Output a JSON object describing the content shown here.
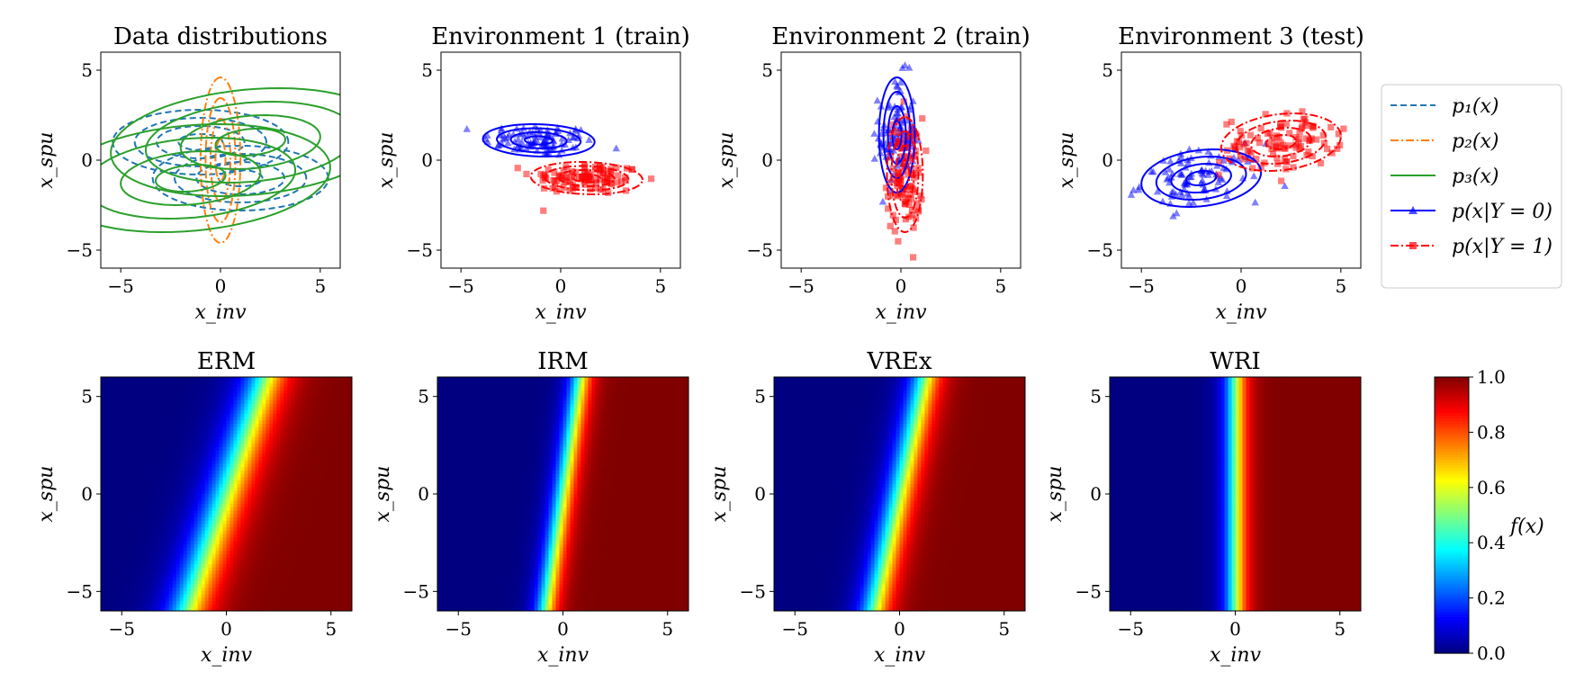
{
  "figure": {
    "colors": {
      "blue": "#1f77b4",
      "orange": "#ff7f0e",
      "green": "#2ca02c",
      "class0": "#0000ff",
      "class1": "#ff0000"
    },
    "legend": {
      "placement": "right of top row",
      "entries": [
        {
          "text": "p₁(x)",
          "style": "dashed",
          "color": "#1f77b4",
          "marker": "none"
        },
        {
          "text": "p₂(x)",
          "style": "dashdot",
          "color": "#ff7f0e",
          "marker": "none"
        },
        {
          "text": "p₃(x)",
          "style": "solid",
          "color": "#2ca02c",
          "marker": "none"
        },
        {
          "text": "p(x|Y = 0)",
          "style": "solid",
          "color": "#0000ff",
          "marker": "triangle"
        },
        {
          "text": "p(x|Y = 1)",
          "style": "dashdot",
          "color": "#ff0000",
          "marker": "square"
        }
      ]
    },
    "colorbar": {
      "label": "f(x)",
      "range": [
        0,
        1
      ],
      "ticks": [
        "0.0",
        "0.2",
        "0.4",
        "0.6",
        "0.8",
        "1.0"
      ],
      "colormap": "jet"
    }
  },
  "chart_data": [
    {
      "type": "contour",
      "title": "Data distributions",
      "xlabel": "x_inv",
      "ylabel": "x_spu",
      "xlim": [
        -6,
        6
      ],
      "ylim": [
        -6,
        6
      ],
      "xticks": [
        "−5",
        "0",
        "5"
      ],
      "yticks": [
        "−5",
        "0",
        "5"
      ],
      "series": [
        {
          "legend_index": 0,
          "color": "#1f77b4",
          "style": "dashed",
          "components": [
            {
              "mean": [
                -1,
                1
              ],
              "std": [
                2.2,
                0.9
              ],
              "rho": 0
            },
            {
              "mean": [
                1,
                -1
              ],
              "std": [
                2.2,
                0.9
              ],
              "rho": 0
            }
          ]
        },
        {
          "legend_index": 1,
          "color": "#ff7f0e",
          "style": "dashdot",
          "components": [
            {
              "mean": [
                0,
                0
              ],
              "std": [
                0.5,
                2.3
              ],
              "rho": 0
            }
          ]
        },
        {
          "legend_index": 2,
          "color": "#2ca02c",
          "style": "solid",
          "components": [
            {
              "mean": [
                1.5,
                1
              ],
              "std": [
                3.5,
                1.5
              ],
              "rho": 0.2
            },
            {
              "mean": [
                -1.5,
                -1
              ],
              "std": [
                3.5,
                1.5
              ],
              "rho": 0.2
            }
          ]
        }
      ]
    },
    {
      "type": "scatter",
      "title": "Environment 1 (train)",
      "xlabel": "x_inv",
      "ylabel": "x_spu",
      "xlim": [
        -6,
        6
      ],
      "ylim": [
        -6,
        6
      ],
      "xticks": [
        "−5",
        "0",
        "5"
      ],
      "yticks": [
        "−5",
        "0",
        "5"
      ],
      "classes": [
        {
          "legend_index": 3,
          "label": "Y=0",
          "marker": "triangle",
          "color": "#0000ff",
          "style": "solid",
          "mean": [
            -1.1,
            1.1
          ],
          "std": [
            1.4,
            0.45
          ],
          "rho": -0.1,
          "points": 100
        },
        {
          "legend_index": 4,
          "label": "Y=1",
          "marker": "square",
          "color": "#ff0000",
          "style": "dashdot",
          "mean": [
            1.3,
            -1.0
          ],
          "std": [
            1.4,
            0.45
          ],
          "rho": -0.1,
          "points": 100
        }
      ]
    },
    {
      "type": "scatter",
      "title": "Environment 2 (train)",
      "xlabel": "x_inv",
      "ylabel": "x_spu",
      "xlim": [
        -6,
        6
      ],
      "ylim": [
        -6,
        6
      ],
      "xticks": [
        "−5",
        "0",
        "5"
      ],
      "yticks": [
        "−5",
        "0",
        "5"
      ],
      "classes": [
        {
          "legend_index": 3,
          "label": "Y=0",
          "marker": "triangle",
          "color": "#0000ff",
          "style": "solid",
          "mean": [
            -0.2,
            1.4
          ],
          "std": [
            0.45,
            1.6
          ],
          "rho": 0,
          "points": 100
        },
        {
          "legend_index": 4,
          "label": "Y=1",
          "marker": "square",
          "color": "#ff0000",
          "style": "dashdot",
          "mean": [
            0.2,
            -0.8
          ],
          "std": [
            0.45,
            1.6
          ],
          "rho": 0,
          "points": 100
        }
      ]
    },
    {
      "type": "scatter",
      "title": "Environment 3 (test)",
      "xlabel": "x_inv",
      "ylabel": "x_spu",
      "xlim": [
        -6,
        6
      ],
      "ylim": [
        -6,
        6
      ],
      "xticks": [
        "−5",
        "0",
        "5"
      ],
      "yticks": [
        "−5",
        "0",
        "5"
      ],
      "classes": [
        {
          "legend_index": 3,
          "label": "Y=0",
          "marker": "triangle",
          "color": "#0000ff",
          "style": "solid",
          "mean": [
            -2.0,
            -1.0
          ],
          "std": [
            1.5,
            0.8
          ],
          "rho": 0.2,
          "points": 100
        },
        {
          "legend_index": 4,
          "label": "Y=1",
          "marker": "square",
          "color": "#ff0000",
          "style": "dashdot",
          "mean": [
            2.0,
            1.0
          ],
          "std": [
            1.5,
            0.8
          ],
          "rho": 0.2,
          "points": 100
        }
      ]
    },
    {
      "type": "heatmap",
      "title": "ERM",
      "xlabel": "x_inv",
      "ylabel": "x_spu",
      "xlim": [
        -6,
        6
      ],
      "ylim": [
        -6,
        6
      ],
      "xticks": [
        "−5",
        "0",
        "5"
      ],
      "yticks": [
        "−5",
        "0",
        "5"
      ],
      "model": {
        "w_inv": 1.6,
        "w_spu": -0.5,
        "bias": 0
      }
    },
    {
      "type": "heatmap",
      "title": "IRM",
      "xlabel": "x_inv",
      "ylabel": "x_spu",
      "xlim": [
        -6,
        6
      ],
      "ylim": [
        -6,
        6
      ],
      "xticks": [
        "−5",
        "0",
        "5"
      ],
      "yticks": [
        "−5",
        "0",
        "5"
      ],
      "model": {
        "w_inv": 3.0,
        "w_spu": -0.42,
        "bias": 0
      }
    },
    {
      "type": "heatmap",
      "title": "VREx",
      "xlabel": "x_inv",
      "ylabel": "x_spu",
      "xlim": [
        -6,
        6
      ],
      "ylim": [
        -6,
        6
      ],
      "xticks": [
        "−5",
        "0",
        "5"
      ],
      "yticks": [
        "−5",
        "0",
        "5"
      ],
      "model": {
        "w_inv": 2.2,
        "w_spu": -0.45,
        "bias": 0
      }
    },
    {
      "type": "heatmap",
      "title": "WRI",
      "xlabel": "x_inv",
      "ylabel": "x_spu",
      "xlim": [
        -6,
        6
      ],
      "ylim": [
        -6,
        6
      ],
      "xticks": [
        "−5",
        "0",
        "5"
      ],
      "yticks": [
        "−5",
        "0",
        "5"
      ],
      "model": {
        "w_inv": 3.0,
        "w_spu": 0,
        "bias": 0
      }
    }
  ]
}
